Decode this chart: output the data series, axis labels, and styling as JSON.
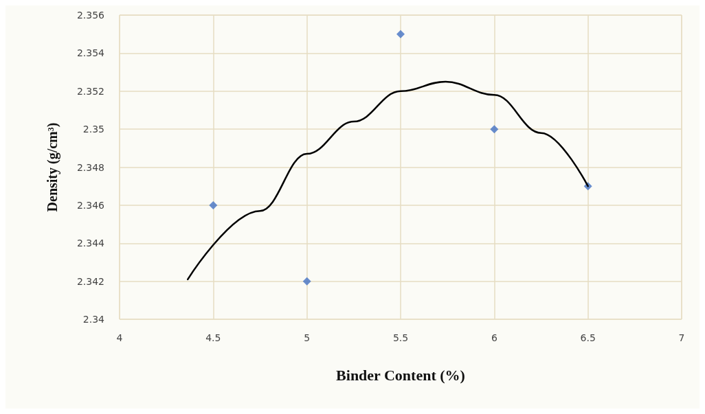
{
  "chart_data": {
    "type": "scatter",
    "xlabel": "Binder Content (%)",
    "ylabel": "Density (g/cm³)",
    "x": [
      4.5,
      5,
      5.5,
      6,
      6.5
    ],
    "xlim": [
      4,
      7
    ],
    "xticks": [
      4,
      4.5,
      5,
      5.5,
      6,
      6.5,
      7
    ],
    "ylim": [
      2.34,
      2.356
    ],
    "yticks": [
      2.34,
      2.342,
      2.344,
      2.346,
      2.348,
      2.35,
      2.352,
      2.354,
      2.356
    ],
    "grid": true,
    "marker": "diamond",
    "series": [
      {
        "color": "#4472c4",
        "values": [
          2.346,
          2.342,
          2.355,
          2.35,
          2.347
        ]
      },
      {
        "type": "line",
        "color": "#000000",
        "marker": "none",
        "x": [
          4.364,
          4.75,
          5,
          5.25,
          5.5,
          5.74,
          6,
          6.25,
          6.5
        ],
        "values": [
          2.3421,
          2.3457,
          2.3487,
          2.3504,
          2.352,
          2.3525,
          2.3518,
          2.3498,
          2.347
        ]
      }
    ]
  }
}
